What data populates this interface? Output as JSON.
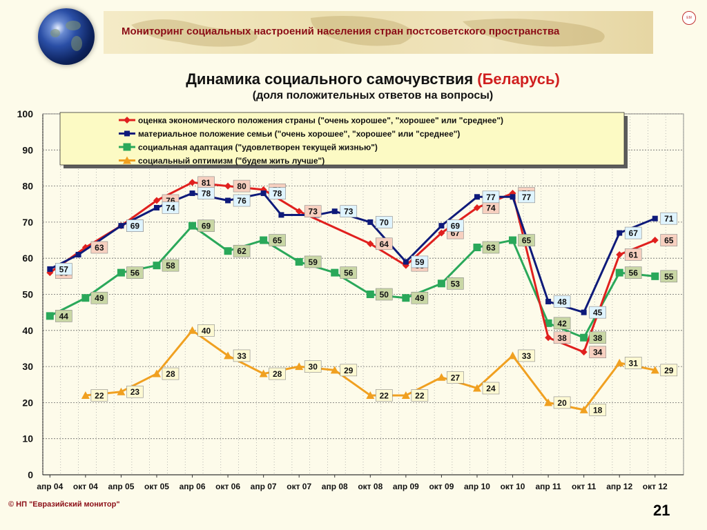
{
  "header": {
    "banner_title": "Мониторинг социальных настроений населения стран постсоветского пространства"
  },
  "title": {
    "main": "Динамика социального самочувствия",
    "highlight": "(Беларусь)",
    "sub": "(доля положительных ответов на вопросы)"
  },
  "footer": {
    "copyright": "© НП \"Евразийский монитор\"",
    "page_number": "21"
  },
  "chart_data": {
    "type": "line",
    "categories": [
      "апр 04",
      "окт 04",
      "апр 05",
      "окт 05",
      "апр 06",
      "окт 06",
      "апр 07",
      "окт 07",
      "апр 08",
      "окт 08",
      "апр 09",
      "окт 09",
      "апр 10",
      "окт 10",
      "апр 11",
      "окт 11",
      "апр 12",
      "окт 12"
    ],
    "ylim": [
      0,
      100
    ],
    "yticks": [
      0,
      10,
      20,
      30,
      40,
      50,
      60,
      70,
      80,
      90,
      100
    ],
    "grid": true,
    "legend_position": "top",
    "series": [
      {
        "name": "оценка экономического положения страны (\"очень хорошее\", \"хорошее\" или \"среднее\")",
        "color": "#e0201e",
        "label_bg": "#f7d0c0",
        "marker": "diamond",
        "x": [
          0,
          1,
          2,
          3,
          4,
          5,
          6,
          7,
          9,
          10,
          11,
          12,
          13,
          14,
          15,
          16,
          17
        ],
        "values": [
          56,
          63,
          69,
          76,
          81,
          80,
          79,
          73,
          64,
          58,
          67,
          74,
          78,
          38,
          34,
          61,
          65
        ]
      },
      {
        "name": "материальное положение семьи (\"очень хорошее\", \"хорошее\" или \"среднее\")",
        "color": "#0e1a7a",
        "label_bg": "#dff4ff",
        "marker": "square",
        "x": [
          0,
          0.8,
          2,
          3,
          4,
          5,
          6,
          6.5,
          7.5,
          8,
          9,
          10,
          11,
          12,
          13,
          14,
          15,
          16,
          17
        ],
        "values": [
          57,
          61,
          69,
          74,
          78,
          76,
          78,
          72,
          72,
          73,
          70,
          59,
          69,
          77,
          77,
          48,
          45,
          67,
          71
        ]
      },
      {
        "name": "социальная адаптация (\"удовлетворен текущей жизнью\")",
        "color": "#2aa85a",
        "label_bg": "#c9d7a5",
        "marker": "square",
        "x": [
          0,
          1,
          2,
          3,
          4,
          5,
          6,
          7,
          8,
          9,
          10,
          11,
          12,
          13,
          14,
          15,
          16,
          17
        ],
        "values": [
          44,
          49,
          56,
          58,
          69,
          62,
          65,
          59,
          56,
          50,
          49,
          53,
          63,
          65,
          42,
          38,
          56,
          55
        ]
      },
      {
        "name": "социальный оптимизм (\"будем жить лучше\")",
        "color": "#f0a020",
        "label_bg": "#fdf9d2",
        "marker": "triangle",
        "x": [
          1,
          2,
          3,
          4,
          5,
          6,
          7,
          8,
          9,
          10,
          11,
          12,
          13,
          14,
          15,
          16,
          17
        ],
        "values": [
          22,
          23,
          28,
          40,
          33,
          28,
          30,
          29,
          22,
          22,
          27,
          24,
          33,
          20,
          18,
          31,
          29
        ]
      }
    ]
  }
}
